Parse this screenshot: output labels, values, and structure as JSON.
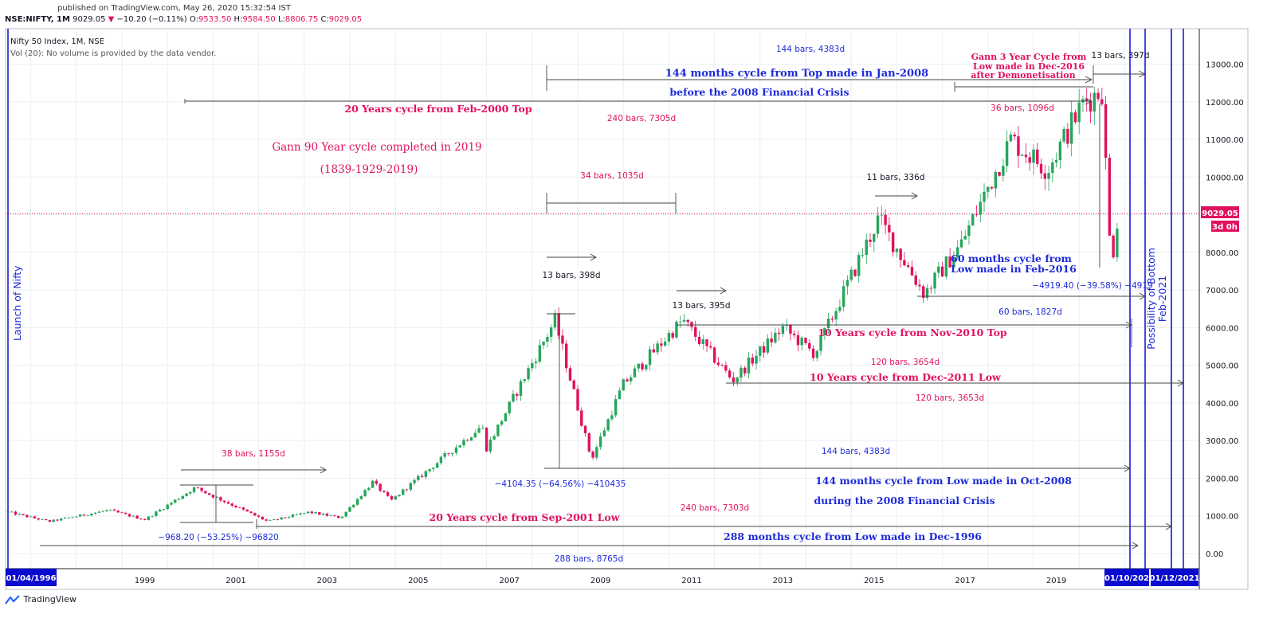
{
  "header": {
    "published": "published on TradingView.com, May 26, 2020 15:32:54 IST",
    "symbol": "NSE:NIFTY, 1M",
    "last": "9029.05",
    "change": "−10.20 (−0.11%)",
    "open_label": "O:",
    "open": "9533.50",
    "high_label": "H:",
    "high": "9584.50",
    "low_label": "L:",
    "low": "8806.75",
    "close_label": "C:",
    "close": "9029.05"
  },
  "legend": {
    "title": "Nifty 50 Index, 1M, NSE",
    "volume_note": "Vol (20): No volume is provided by the data vendor."
  },
  "price_badge": {
    "value": "9029.05",
    "countdown": "3d 0h"
  },
  "colors": {
    "up": "#26a65b",
    "down": "#e0115f",
    "annotation_red": "#e0115f",
    "annotation_blue": "#1d2bd8",
    "vline_blue": "#1a1ad6",
    "label_bg": "#0a0ad0"
  },
  "footer": {
    "brand": "TradingView"
  },
  "chart_data": {
    "type": "candlestick",
    "y_range": [
      -250,
      13700
    ],
    "x_range": [
      "1995-10",
      "2022-05"
    ],
    "y_ticks": [
      "13000.00",
      "12000.00",
      "11000.00",
      "10000.00",
      "9000.00",
      "8000.00",
      "7000.00",
      "6000.00",
      "5000.00",
      "4000.00",
      "3000.00",
      "2000.00",
      "1000.00",
      "0.00"
    ],
    "y_tick_values": [
      13000,
      12000,
      11000,
      10000,
      9000,
      8000,
      7000,
      6000,
      5000,
      4000,
      3000,
      2000,
      1000,
      0
    ],
    "x_ticks": [
      {
        "label": "1999",
        "year": 1999.0
      },
      {
        "label": "2001",
        "year": 2001.0
      },
      {
        "label": "2003",
        "year": 2003.0
      },
      {
        "label": "2005",
        "year": 2005.0
      },
      {
        "label": "2007",
        "year": 2007.0
      },
      {
        "label": "2009",
        "year": 2009.0
      },
      {
        "label": "2011",
        "year": 2011.0
      },
      {
        "label": "2013",
        "year": 2013.0
      },
      {
        "label": "2015",
        "year": 2015.0
      },
      {
        "label": "2017",
        "year": 2017.0
      },
      {
        "label": "2019",
        "year": 2019.0
      }
    ],
    "key_points": [
      {
        "year": 1996.0,
        "value": 1100
      },
      {
        "year": 1996.9,
        "value": 850
      },
      {
        "year": 1998.2,
        "value": 1150
      },
      {
        "year": 1999.0,
        "value": 900
      },
      {
        "year": 2000.1,
        "value": 1750
      },
      {
        "year": 2001.7,
        "value": 850
      },
      {
        "year": 2002.6,
        "value": 1100
      },
      {
        "year": 2003.3,
        "value": 950
      },
      {
        "year": 2004.0,
        "value": 1900
      },
      {
        "year": 2004.4,
        "value": 1400
      },
      {
        "year": 2005.0,
        "value": 2000
      },
      {
        "year": 2006.4,
        "value": 3400
      },
      {
        "year": 2006.5,
        "value": 2800
      },
      {
        "year": 2008.0,
        "value": 6200
      },
      {
        "year": 2008.8,
        "value": 2500
      },
      {
        "year": 2009.5,
        "value": 4500
      },
      {
        "year": 2010.8,
        "value": 6200
      },
      {
        "year": 2011.9,
        "value": 4600
      },
      {
        "year": 2013.0,
        "value": 6000
      },
      {
        "year": 2013.7,
        "value": 5300
      },
      {
        "year": 2015.1,
        "value": 8900
      },
      {
        "year": 2016.1,
        "value": 6900
      },
      {
        "year": 2016.9,
        "value": 8200
      },
      {
        "year": 2018.0,
        "value": 11000
      },
      {
        "year": 2018.8,
        "value": 10200
      },
      {
        "year": 2019.6,
        "value": 12000
      },
      {
        "year": 2020.0,
        "value": 12300
      },
      {
        "year": 2020.2,
        "value": 7600
      },
      {
        "year": 2020.35,
        "value": 9000
      }
    ],
    "last_price": 9029.05
  },
  "annotations": {
    "gann90_line1": "Gann 90 Year cycle completed in 2019",
    "gann90_line2": "(1839-1929-2019)",
    "top_144_line1": "144 months cycle from Top made in Jan-2008",
    "top_144_line2": "before the 2008 Financial Crisis",
    "top_144_bars": "144 bars, 4383d",
    "cycle20_feb2000": "20 Years cycle from Feb-2000 Top",
    "bars_240_7305": "240 bars, 7305d",
    "gann3_line1": "Gann 3 Year Cycle from",
    "gann3_line2": "Low made in Dec-2016",
    "gann3_line3": "after Demonetisation",
    "bars_13_397": "13 bars, 397d",
    "bars_36_1096": "36 bars, 1096d",
    "bars_34_1035": "34 bars, 1035d",
    "bars_11_336": "11 bars, 336d",
    "bars_13_398": "13 bars, 398d",
    "bars_13_395": "13 bars, 395d",
    "low60_line1": "60 months cycle from",
    "low60_line2": "Low made in Feb-2016",
    "drop_2020": "−4919.40 (−39.58%) −4919",
    "bars_60_1827": "60 bars, 1827d",
    "cycle10_nov2010": "10 Years cycle from Nov-2010 Top",
    "bars_120_3654": "120 bars, 3654d",
    "cycle10_dec2011": "10 Years cycle from Dec-2011 Low",
    "bars_120_3653": "120 bars, 3653d",
    "bars_38_1155": "38 bars, 1155d",
    "low_144_bars": "144 bars, 4383d",
    "drop_2008": "−4104.35 (−64.56%) −410435",
    "low_144_line1": "144 months cycle from Low made in Oct-2008",
    "low_144_line2": "during the 2008 Financial Crisis",
    "bars_240_7303": "240 bars, 7303d",
    "cycle20_sep2001": "20 Years cycle from Sep-2001 Low",
    "drop_2001": "−968.20 (−53.25%) −96820",
    "cycle288": "288 months cycle from Low made in Dec-1996",
    "bars_288_8765": "288 bars, 8765d",
    "launch": "Launch of Nifty",
    "possibility_line1": "Possibility of Bottom",
    "possibility_line2": "Feb-2021",
    "date_launch": "01/04/1996",
    "date_oct": "01/10/202",
    "date_dec": "01/12/2021"
  }
}
